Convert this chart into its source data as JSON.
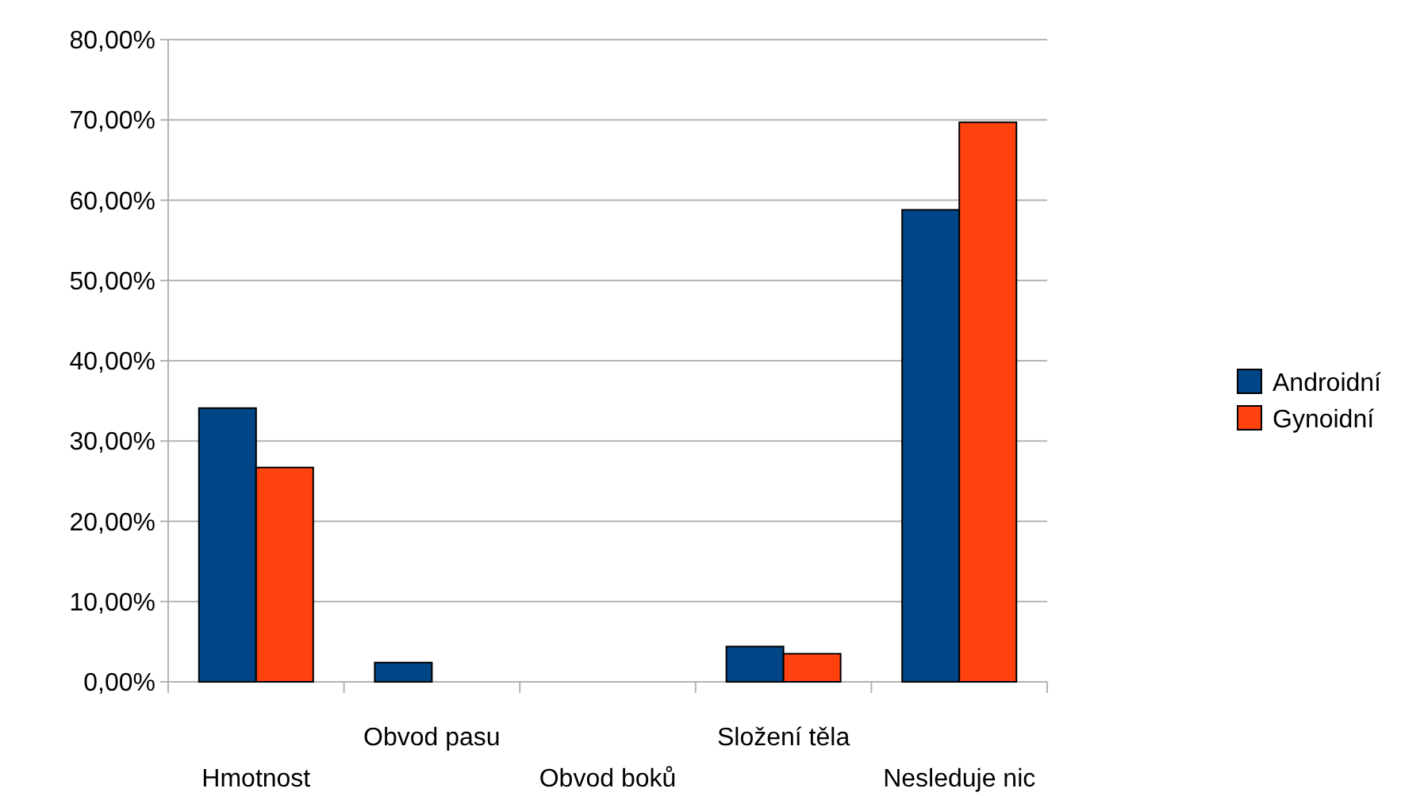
{
  "chart_data": {
    "type": "bar",
    "categories": [
      "Hmotnost",
      "Obvod pasu",
      "Obvod boků",
      "Složení těla",
      "Nesleduje nic"
    ],
    "series": [
      {
        "name": "Androidní",
        "color": "#004586",
        "values": [
          34.1,
          2.4,
          0,
          4.4,
          58.8
        ]
      },
      {
        "name": "Gynoidní",
        "color": "#ff420e",
        "values": [
          26.7,
          0,
          0,
          3.5,
          69.7
        ]
      }
    ],
    "ylim": [
      0,
      80
    ],
    "yticks": [
      {
        "value": 0,
        "label": "0,00%"
      },
      {
        "value": 10,
        "label": "10,00%"
      },
      {
        "value": 20,
        "label": "20,00%"
      },
      {
        "value": 30,
        "label": "30,00%"
      },
      {
        "value": 40,
        "label": "40,00%"
      },
      {
        "value": 50,
        "label": "50,00%"
      },
      {
        "value": 60,
        "label": "60,00%"
      },
      {
        "value": 70,
        "label": "70,00%"
      },
      {
        "value": 80,
        "label": "80,00%"
      }
    ],
    "grid": "y",
    "legend": "right"
  }
}
